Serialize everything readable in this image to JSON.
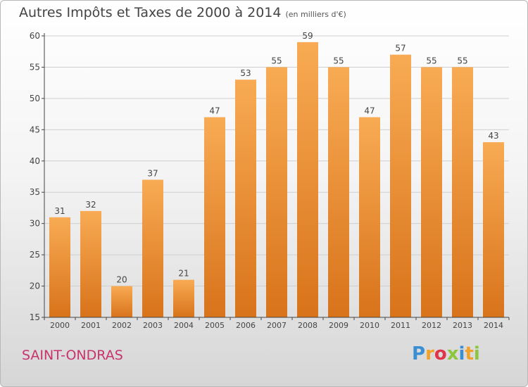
{
  "title": "Autres Impôts et Taxes de 2000 à 2014",
  "title_unit": "(en milliers d'€)",
  "commune": "SAINT-ONDRAS",
  "logo": {
    "text": "Proxiti",
    "colors": [
      "#3a8fd4",
      "#f0a22a",
      "#e0344a",
      "#8cc63e",
      "#3a8fd4",
      "#f0a22a",
      "#8cc63e"
    ]
  },
  "colors": {
    "bar_top": "#f8ab54",
    "bar_bottom": "#d8731a",
    "axis": "#444444",
    "grid": "#cfcfcf"
  },
  "chart_data": {
    "type": "bar",
    "categories": [
      "2000",
      "2001",
      "2002",
      "2003",
      "2004",
      "2005",
      "2006",
      "2007",
      "2008",
      "2009",
      "2010",
      "2011",
      "2012",
      "2013",
      "2014"
    ],
    "values": [
      31,
      32,
      20,
      37,
      21,
      47,
      53,
      55,
      59,
      55,
      47,
      57,
      55,
      55,
      43
    ],
    "data_labels": [
      "31",
      "32",
      "20",
      "37",
      "21",
      "47",
      "53",
      "55",
      "59",
      "55",
      "47",
      "57",
      "55",
      "55",
      "43"
    ],
    "ylim": [
      15,
      60
    ],
    "yticks": [
      15,
      20,
      25,
      30,
      35,
      40,
      45,
      50,
      55,
      60
    ],
    "ytick_labels": [
      "15",
      "20",
      "25",
      "30",
      "35",
      "40",
      "45",
      "50",
      "55",
      "60"
    ],
    "xlabel": "",
    "ylabel": "",
    "grid": true
  }
}
